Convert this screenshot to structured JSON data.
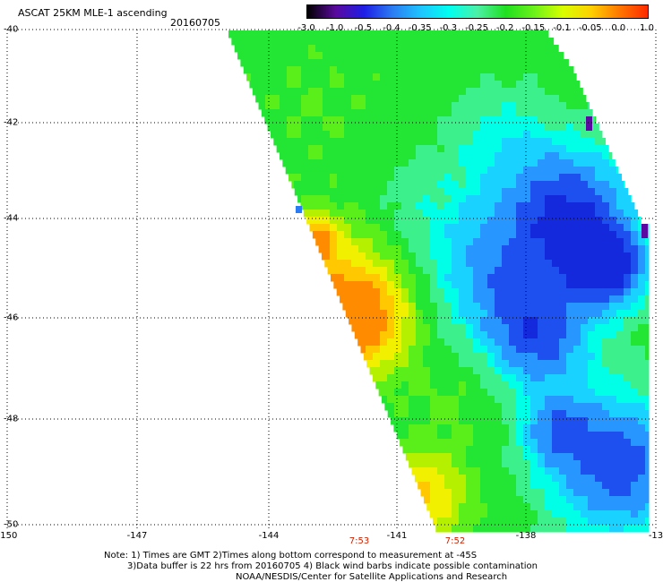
{
  "header": {
    "title": "ASCAT 25KM MLE-1 ascending",
    "date": "20160705"
  },
  "colorbar": {
    "labels": [
      "-3.0",
      "-1.0",
      "-0.5",
      "-0.4",
      "-0.35",
      "-0.3",
      "-0.25",
      "-0.2",
      "-0.15",
      "-0.1",
      "-0.05",
      "0.0",
      "1.0"
    ],
    "colors": [
      "#000000",
      "#5a0a9e",
      "#1e1ee6",
      "#2b7cf2",
      "#1ec4ff",
      "#00fff0",
      "#4cf0a6",
      "#1fe01f",
      "#6cf21a",
      "#d8ff00",
      "#ffd000",
      "#ff7700",
      "#ff2a00"
    ]
  },
  "axes": {
    "lat_labels": [
      "-40",
      "-42",
      "-44",
      "-46",
      "-48",
      "-50"
    ],
    "lon_labels": [
      "-150",
      "-147",
      "-144",
      "-141",
      "-138",
      "-13"
    ]
  },
  "times": [
    "7:53",
    "7:52"
  ],
  "notes": {
    "line1": "Note: 1) Times are GMT 2)Times along bottom correspond to measurement at -45S",
    "line2": "3)Data buffer is 22 hrs from 20160705 4) Black wind barbs indicate possible contamination",
    "line3": "NOAA/NESDIS/Center for Satellite Applications and Research"
  }
}
